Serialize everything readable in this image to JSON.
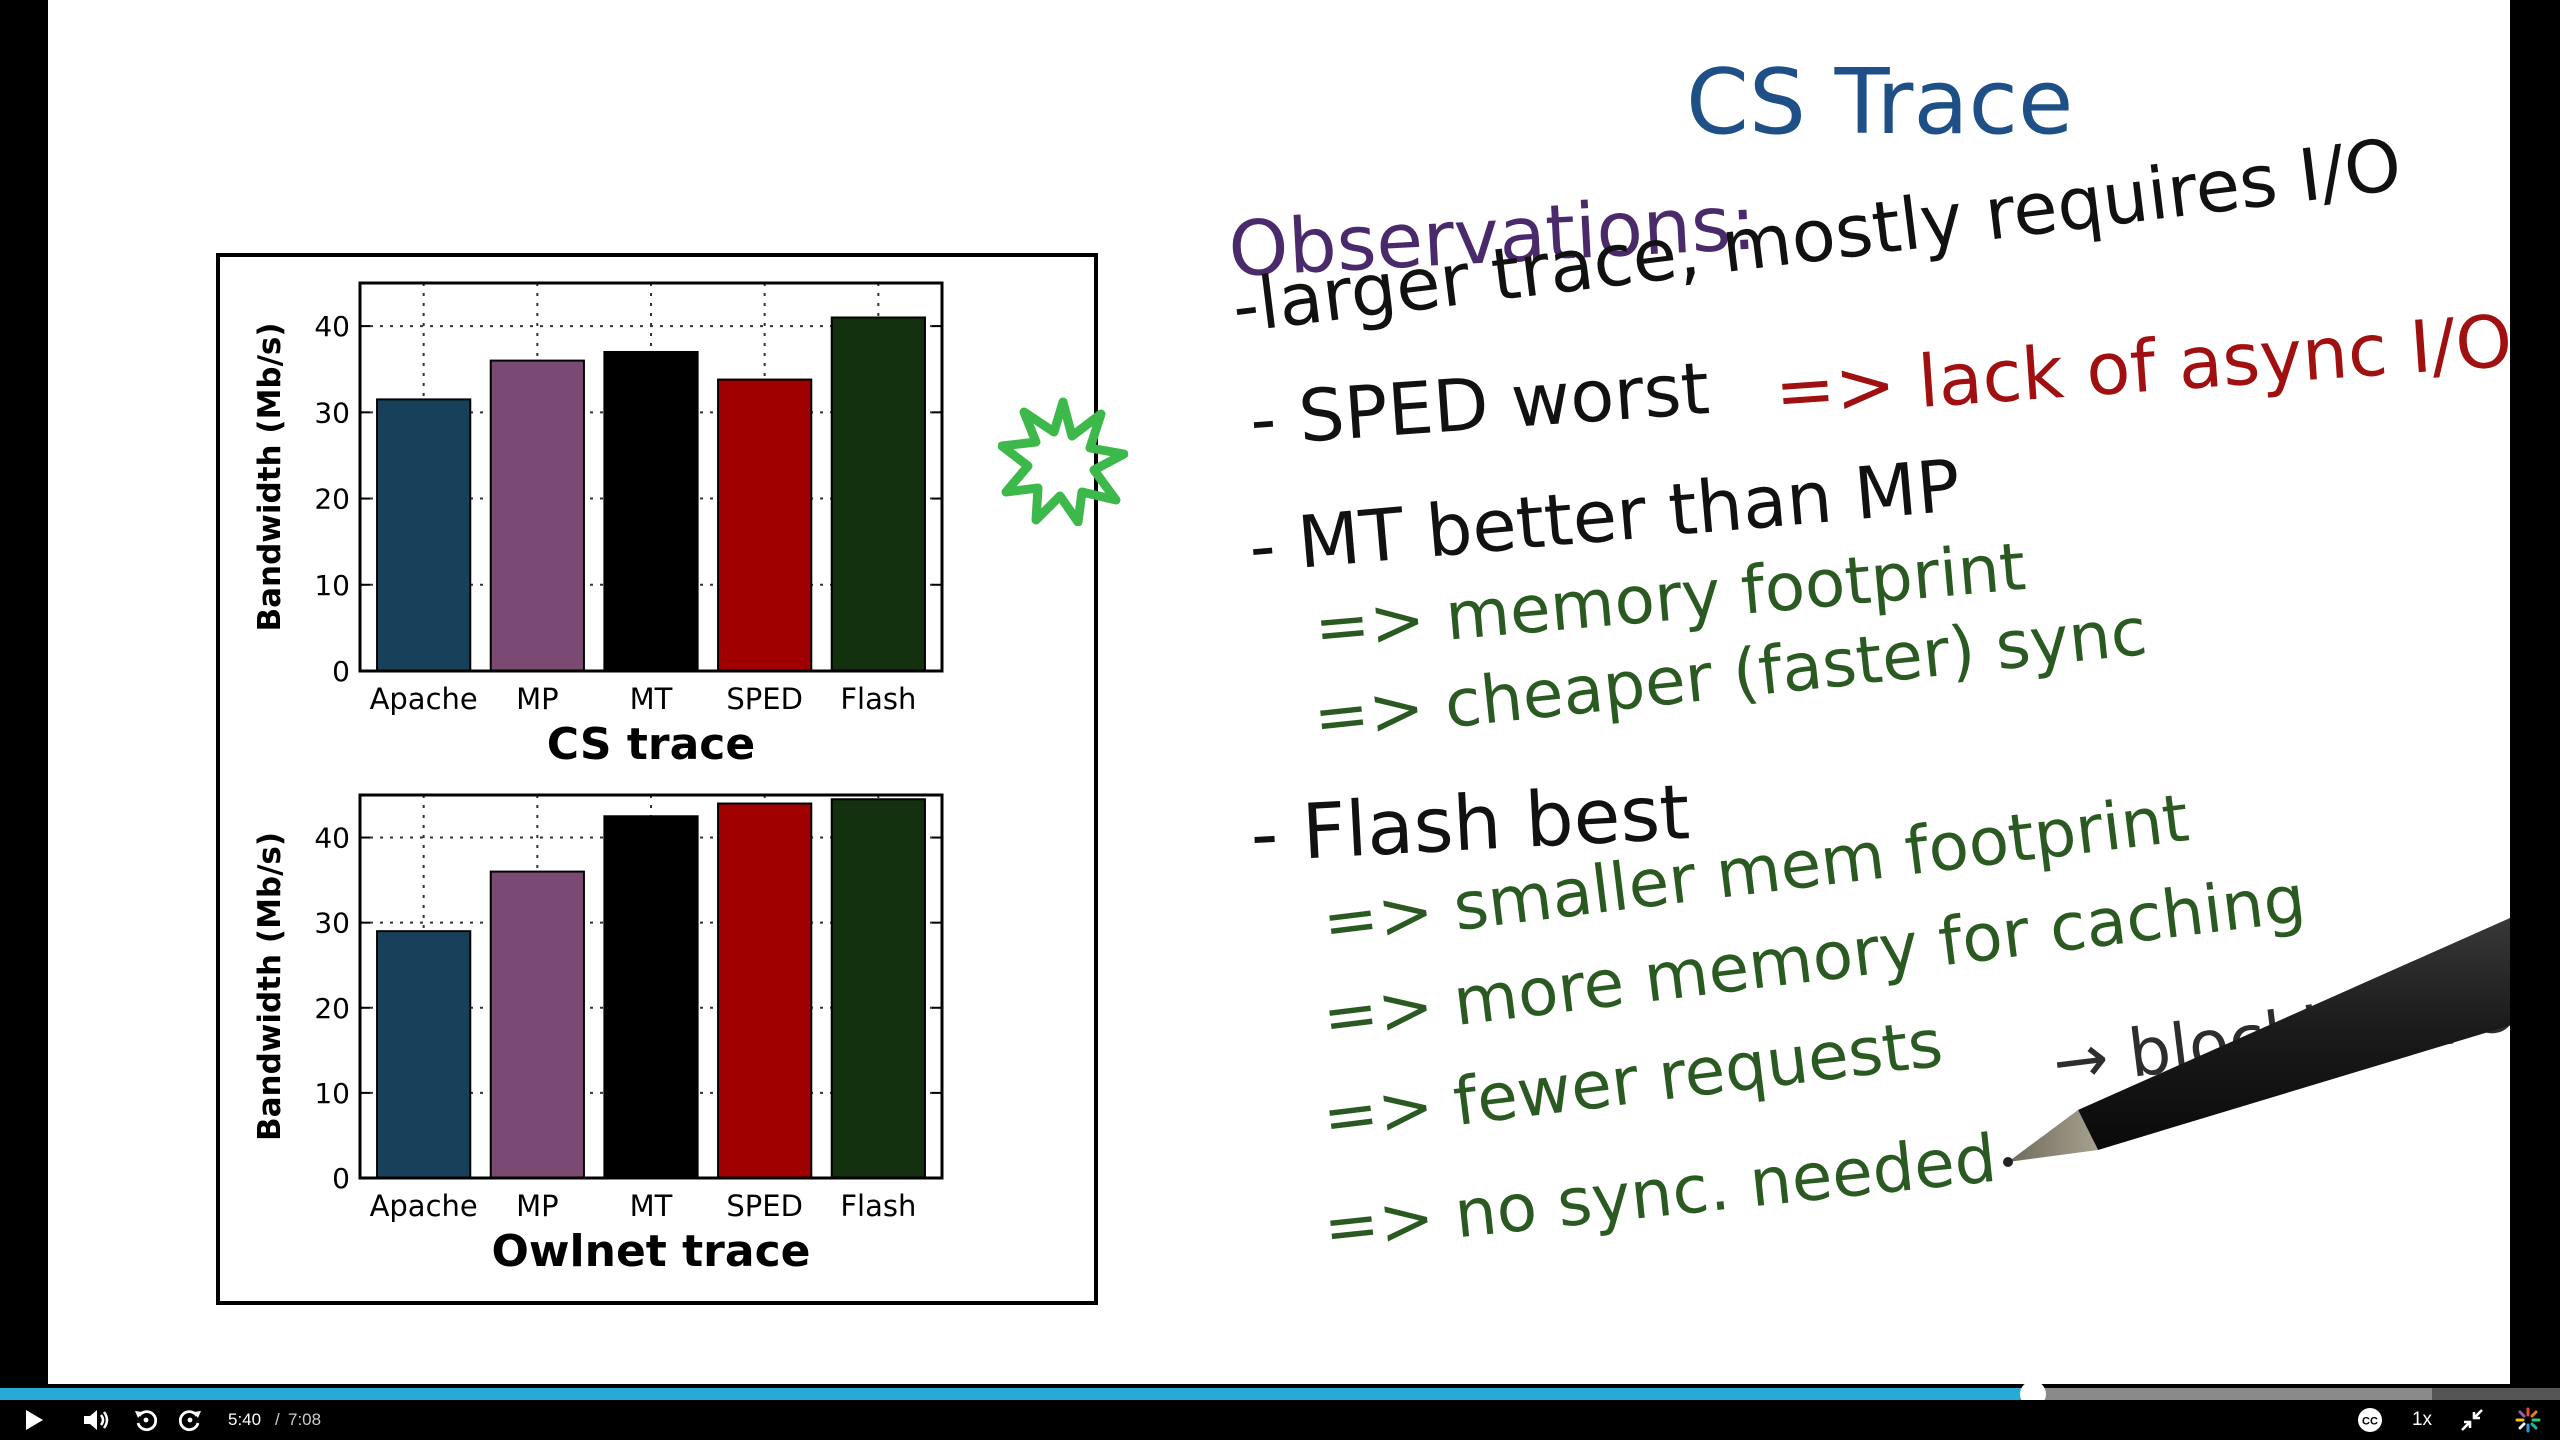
{
  "slide": {
    "title": "CS Trace",
    "observations_heading": "Observations:",
    "lines": {
      "l1": "-larger trace, mostly requires I/O",
      "l2a": "- SPED worst",
      "l2b": "=> lack of async I/O",
      "l3": "- MT better than MP",
      "l3a": "=> memory footprint",
      "l3b": "=> cheaper (faster) sync",
      "l4": "- Flash best",
      "l4a": "=> smaller mem footprint",
      "l4b": "=> more memory for caching",
      "l4c": "=> fewer requests",
      "l4c_tail": "→ blocking I/O",
      "l4d": "=> no sync. needed"
    },
    "colors": {
      "title": "#1e4f86",
      "heading": "#4a2a6a",
      "red_note": "#a01010",
      "green_note": "#2a5a22",
      "star": "#3db84a"
    },
    "icons": [
      "star-annotation-icon",
      "pen-icon"
    ]
  },
  "chart_data": [
    {
      "type": "bar",
      "title": "CS trace",
      "ylabel": "Bandwidth (Mb/s)",
      "categories": [
        "Apache",
        "MP",
        "MT",
        "SPED",
        "Flash"
      ],
      "values": [
        31.5,
        36,
        37,
        33.8,
        41
      ],
      "colors": [
        "#17415a",
        "#7b4a72",
        "#000000",
        "#a00000",
        "#13300f"
      ],
      "ylim": [
        0,
        45
      ],
      "yticks": [
        0,
        10,
        20,
        30,
        40
      ],
      "grid": true
    },
    {
      "type": "bar",
      "title": "Owlnet trace",
      "ylabel": "Bandwidth (Mb/s)",
      "categories": [
        "Apache",
        "MP",
        "MT",
        "SPED",
        "Flash"
      ],
      "values": [
        29,
        36,
        42.5,
        44,
        44.5
      ],
      "colors": [
        "#17415a",
        "#7b4a72",
        "#000000",
        "#a00000",
        "#13300f"
      ],
      "ylim": [
        0,
        45
      ],
      "yticks": [
        0,
        10,
        20,
        30,
        40
      ],
      "grid": true
    }
  ],
  "player": {
    "time_current": "5:40",
    "time_separator": "/",
    "time_total": "7:08",
    "speed": "1x",
    "progress_fraction": 0.794,
    "buffer_fraction": 0.95,
    "colors": {
      "progress": "#29a9d6",
      "buffer": "#8a8a8a",
      "track": "#555555"
    },
    "icons": [
      "play-icon",
      "volume-icon",
      "rewind-icon",
      "forward-icon",
      "closed-captions-icon",
      "exit-fullscreen-icon",
      "logo-icon"
    ]
  }
}
